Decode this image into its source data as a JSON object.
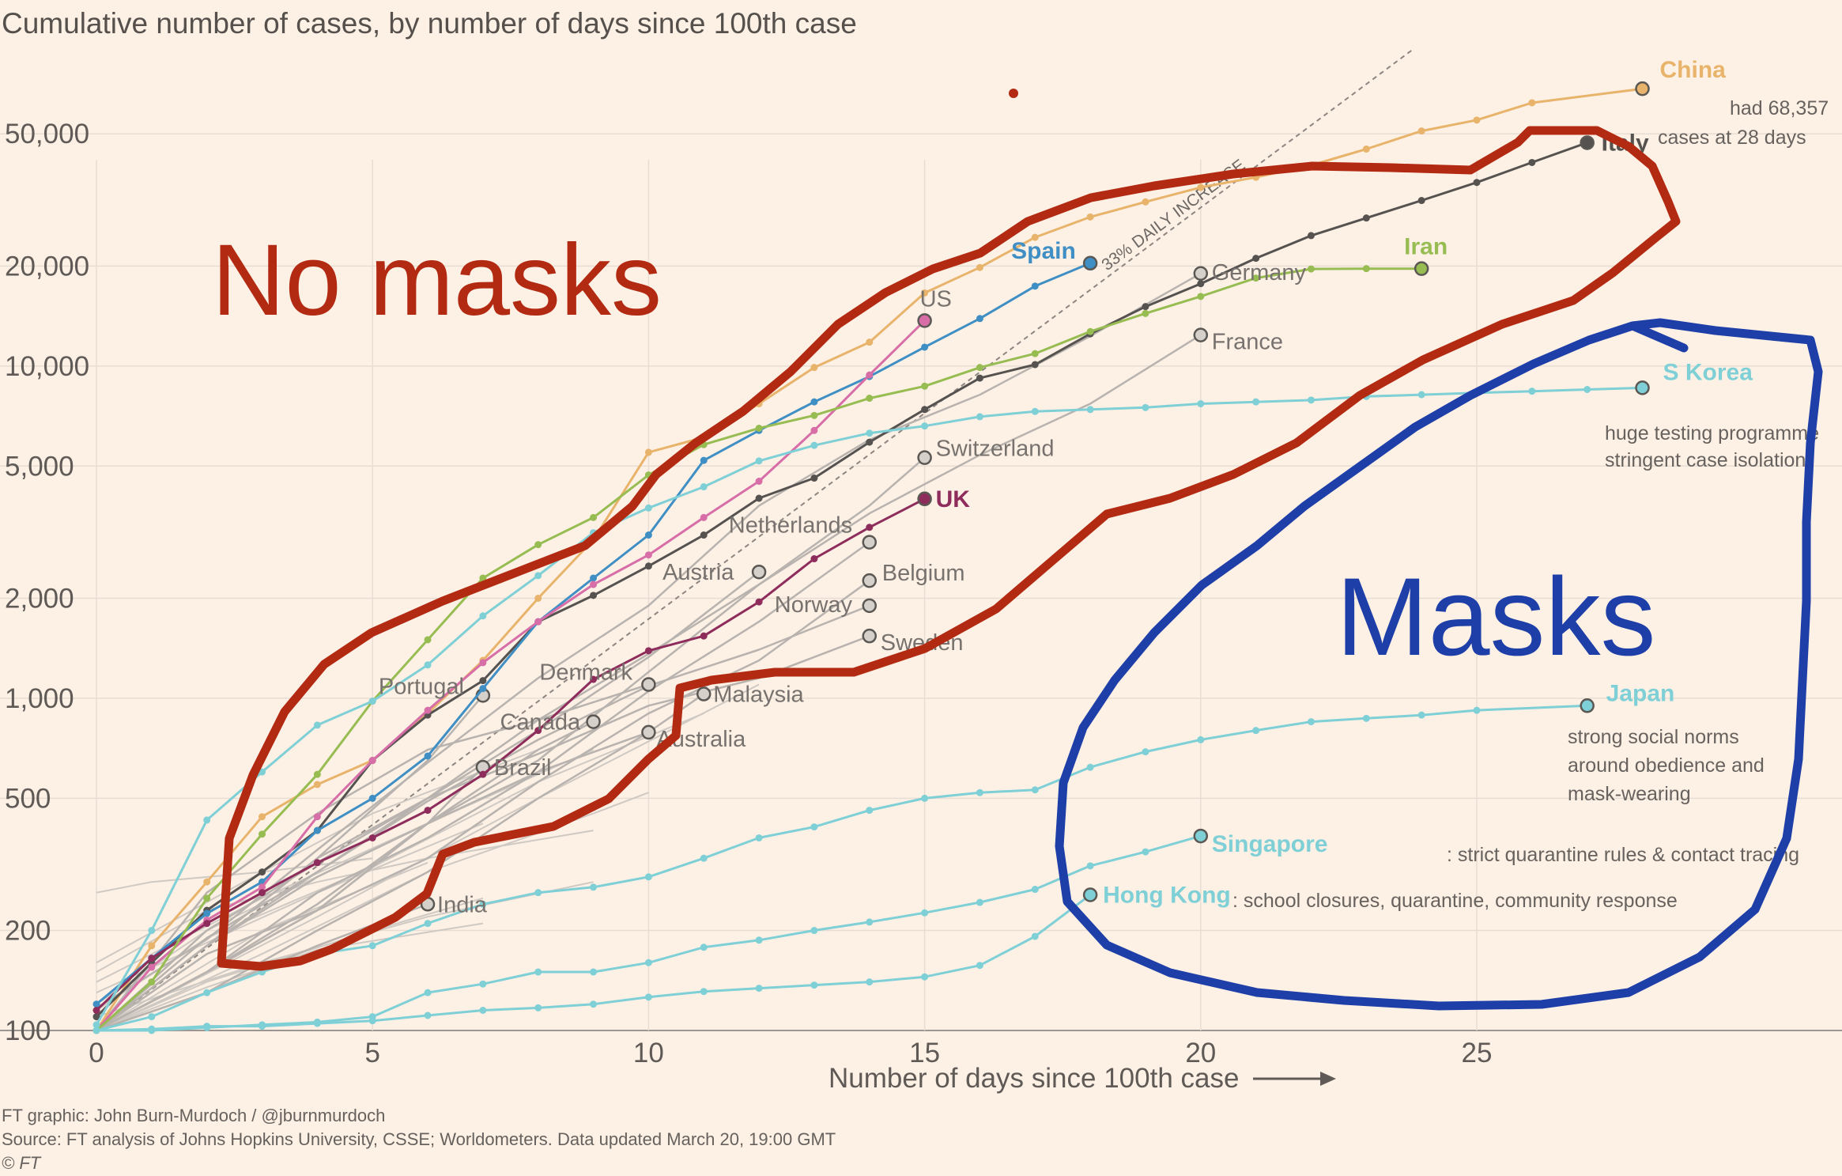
{
  "title": "Cumulative number of cases, by number of days since 100th case",
  "xlabel": "Number of days since 100th case",
  "trend_label": "33% DAILY INCREASE",
  "footer": {
    "credit": "FT graphic: John Burn-Murdoch / @jburnmurdoch",
    "source": "Source: FT analysis of Johns Hopkins University, CSSE; Worldometers. Data updated March 20, 19:00 GMT",
    "copyright": "© FT"
  },
  "annotations": {
    "no_masks": "No masks",
    "masks": "Masks",
    "china_note": [
      "had 68,357",
      "cases at 28 days"
    ],
    "korea_note": [
      "huge testing programme",
      "stringent case isolation"
    ],
    "japan_note": [
      "strong social norms",
      "around obedience and",
      "mask-wearing"
    ],
    "singapore_note": ": strict quarantine rules & contact tracing",
    "hongkong_note": ": school closures, quarantine, community response"
  },
  "colors": {
    "background": "#fdf1e6",
    "grey": "#b8b3ae",
    "china": "#e8b36a",
    "italy": "#555250",
    "spain": "#3f8fc4",
    "us": "#d86ea8",
    "uk": "#8e2d5c",
    "iran": "#97bc51",
    "asia": "#7fd0d6",
    "red_marker": "#b32a12",
    "blue_marker": "#1e3ea8"
  },
  "chart_data": {
    "type": "line",
    "x_scale": "linear",
    "y_scale": "log",
    "xlim": [
      0,
      31
    ],
    "ylim": [
      100,
      90000
    ],
    "x_ticks": [
      0,
      5,
      10,
      15,
      20,
      25
    ],
    "y_ticks": [
      100,
      200,
      500,
      1000,
      2000,
      5000,
      10000,
      20000,
      50000
    ],
    "y_tick_labels": [
      "100",
      "200",
      "500",
      "1,000",
      "2,000",
      "5,000",
      "10,000",
      "20,000",
      "50,000"
    ],
    "grid": true,
    "series": [
      {
        "name": "China",
        "color": "china",
        "x": [
          0,
          1,
          2,
          3,
          4,
          5,
          6,
          7,
          8,
          9,
          10,
          11,
          12,
          13,
          14,
          15,
          16,
          17,
          18,
          19,
          20,
          21,
          22,
          23,
          24,
          25,
          26,
          28
        ],
        "y": [
          100,
          180,
          280,
          440,
          550,
          650,
          900,
          1300,
          2000,
          3000,
          5500,
          6100,
          7700,
          9900,
          11800,
          16600,
          19800,
          24400,
          28100,
          31200,
          34500,
          37000,
          40200,
          45000,
          51000,
          55000,
          62000,
          68357
        ]
      },
      {
        "name": "Italy",
        "color": "italy",
        "x": [
          0,
          1,
          2,
          3,
          4,
          5,
          6,
          7,
          8,
          9,
          10,
          11,
          12,
          13,
          14,
          15,
          16,
          17,
          18,
          19,
          20,
          21,
          22,
          23,
          24,
          25,
          26,
          27
        ],
        "y": [
          110,
          160,
          230,
          300,
          400,
          650,
          890,
          1130,
          1700,
          2040,
          2500,
          3100,
          4000,
          4600,
          5900,
          7400,
          9200,
          10100,
          12500,
          15100,
          17700,
          21100,
          24700,
          27900,
          31500,
          35700,
          41000,
          47021
        ]
      },
      {
        "name": "Spain",
        "color": "spain",
        "x": [
          0,
          1,
          2,
          3,
          4,
          5,
          6,
          7,
          8,
          9,
          10,
          11,
          12,
          13,
          14,
          15,
          16,
          17,
          18
        ],
        "y": [
          120,
          165,
          225,
          280,
          400,
          500,
          670,
          1070,
          1700,
          2300,
          3100,
          5200,
          6400,
          7800,
          9300,
          11400,
          13900,
          17400,
          20400
        ]
      },
      {
        "name": "US",
        "color": "us",
        "x": [
          0,
          1,
          2,
          3,
          4,
          5,
          6,
          7,
          8,
          9,
          10,
          11,
          12,
          13,
          14,
          15
        ],
        "y": [
          100,
          155,
          215,
          270,
          440,
          650,
          920,
          1280,
          1700,
          2200,
          2700,
          3500,
          4500,
          6400,
          9400,
          13700
        ]
      },
      {
        "name": "UK",
        "color": "uk",
        "x": [
          0,
          1,
          2,
          3,
          4,
          5,
          6,
          7,
          8,
          9,
          10,
          11,
          12,
          13,
          14,
          15
        ],
        "y": [
          115,
          165,
          210,
          260,
          320,
          380,
          460,
          590,
          800,
          1140,
          1390,
          1540,
          1950,
          2630,
          3270,
          3983
        ]
      },
      {
        "name": "Iran",
        "color": "iran",
        "x": [
          0,
          1,
          2,
          3,
          4,
          5,
          6,
          7,
          8,
          9,
          10,
          11,
          12,
          13,
          14,
          15,
          16,
          17,
          18,
          19,
          20,
          21,
          22,
          23,
          24
        ],
        "y": [
          100,
          140,
          250,
          390,
          590,
          980,
          1500,
          2300,
          2900,
          3500,
          4700,
          5800,
          6500,
          7100,
          8000,
          8700,
          9900,
          10900,
          12700,
          14400,
          16200,
          18400,
          19600,
          19644,
          19644
        ]
      },
      {
        "name": "S Korea",
        "color": "asia",
        "x": [
          0,
          1,
          2,
          3,
          4,
          5,
          6,
          7,
          8,
          9,
          10,
          11,
          12,
          13,
          14,
          15,
          16,
          17,
          18,
          19,
          20,
          21,
          22,
          23,
          24,
          25,
          26,
          27,
          28
        ],
        "y": [
          104,
          200,
          430,
          600,
          830,
          980,
          1260,
          1770,
          2340,
          3150,
          3740,
          4330,
          5180,
          5770,
          6280,
          6600,
          7040,
          7300,
          7400,
          7500,
          7700,
          7800,
          7900,
          8100,
          8200,
          8300,
          8400,
          8500,
          8600
        ]
      },
      {
        "name": "Japan",
        "color": "asia",
        "x": [
          0,
          1,
          2,
          3,
          4,
          5,
          6,
          7,
          8,
          9,
          10,
          11,
          12,
          13,
          14,
          15,
          16,
          17,
          18,
          19,
          20,
          21,
          22,
          23,
          24,
          25,
          27
        ],
        "y": [
          100,
          110,
          130,
          150,
          170,
          180,
          210,
          240,
          260,
          270,
          290,
          330,
          380,
          410,
          460,
          500,
          520,
          530,
          620,
          690,
          750,
          800,
          850,
          870,
          890,
          920,
          950
        ]
      },
      {
        "name": "Singapore",
        "color": "asia",
        "x": [
          0,
          1,
          2,
          3,
          4,
          5,
          6,
          7,
          8,
          9,
          10,
          11,
          12,
          13,
          14,
          15,
          16,
          17,
          18,
          19,
          20
        ],
        "y": [
          100,
          100,
          102,
          104,
          106,
          110,
          130,
          138,
          150,
          150,
          160,
          178,
          187,
          200,
          212,
          226,
          243,
          266,
          313,
          345,
          385
        ]
      },
      {
        "name": "Hong Kong",
        "color": "asia",
        "x": [
          0,
          1,
          2,
          3,
          4,
          5,
          6,
          7,
          8,
          9,
          10,
          11,
          12,
          13,
          14,
          15,
          16,
          17,
          18
        ],
        "y": [
          100,
          101,
          103,
          103,
          105,
          107,
          111,
          115,
          117,
          120,
          126,
          131,
          134,
          137,
          140,
          145,
          157,
          192,
          256
        ]
      },
      {
        "name": "Germany",
        "color": "grey",
        "x": [
          0,
          2,
          4,
          6,
          8,
          10,
          12,
          14,
          16,
          18,
          19,
          20
        ],
        "y": [
          117,
          188,
          350,
          640,
          1150,
          1900,
          3800,
          6000,
          8200,
          12300,
          15300,
          19000
        ]
      },
      {
        "name": "France",
        "color": "grey",
        "x": [
          0,
          2,
          4,
          6,
          8,
          10,
          12,
          14,
          16,
          18,
          20
        ],
        "y": [
          100,
          180,
          290,
          420,
          650,
          1200,
          2200,
          3600,
          5400,
          7700,
          12400
        ]
      },
      {
        "name": "Switzerland",
        "color": "grey",
        "x": [
          0,
          2,
          4,
          6,
          8,
          10,
          12,
          14,
          15
        ],
        "y": [
          100,
          180,
          330,
          500,
          860,
          1360,
          2200,
          3800,
          5300
        ]
      },
      {
        "name": "Netherlands",
        "color": "grey",
        "x": [
          0,
          2,
          4,
          6,
          8,
          10,
          12,
          14
        ],
        "y": [
          100,
          150,
          260,
          380,
          600,
          1050,
          1700,
          2950
        ]
      },
      {
        "name": "Austria",
        "color": "grey",
        "x": [
          0,
          2,
          4,
          6,
          8,
          10,
          12
        ],
        "y": [
          100,
          180,
          300,
          500,
          800,
          1330,
          2400
        ]
      },
      {
        "name": "Belgium",
        "color": "grey",
        "x": [
          0,
          2,
          4,
          6,
          8,
          10,
          12,
          14
        ],
        "y": [
          100,
          170,
          230,
          330,
          560,
          900,
          1300,
          2260
        ]
      },
      {
        "name": "Norway",
        "color": "grey",
        "x": [
          0,
          2,
          4,
          6,
          8,
          10,
          12,
          14
        ],
        "y": [
          100,
          190,
          300,
          490,
          750,
          1090,
          1400,
          1900
        ]
      },
      {
        "name": "Sweden",
        "color": "grey",
        "x": [
          0,
          2,
          4,
          6,
          8,
          10,
          12,
          14
        ],
        "y": [
          100,
          200,
          320,
          500,
          680,
          950,
          1150,
          1540
        ]
      },
      {
        "name": "Denmark",
        "color": "grey",
        "x": [
          0,
          2,
          4,
          6,
          8,
          10
        ],
        "y": [
          100,
          260,
          450,
          700,
          860,
          1100
        ]
      },
      {
        "name": "Portugal",
        "color": "grey",
        "x": [
          0,
          2,
          4,
          6,
          7
        ],
        "y": [
          100,
          180,
          330,
          650,
          1020
        ]
      },
      {
        "name": "Canada",
        "color": "grey",
        "x": [
          0,
          2,
          4,
          6,
          8,
          9
        ],
        "y": [
          100,
          150,
          230,
          420,
          700,
          850
        ]
      },
      {
        "name": "Brazil",
        "color": "grey",
        "x": [
          0,
          2,
          4,
          6,
          7
        ],
        "y": [
          100,
          150,
          230,
          420,
          620
        ]
      },
      {
        "name": "Malaysia",
        "color": "grey",
        "x": [
          0,
          2,
          4,
          6,
          8,
          10,
          11
        ],
        "y": [
          100,
          150,
          240,
          420,
          600,
          790,
          1030
        ]
      },
      {
        "name": "Australia",
        "color": "grey",
        "x": [
          0,
          2,
          4,
          6,
          8,
          10
        ],
        "y": [
          100,
          130,
          200,
          300,
          500,
          790
        ]
      },
      {
        "name": "India",
        "color": "grey",
        "x": [
          0,
          2,
          4,
          6
        ],
        "y": [
          100,
          130,
          180,
          240
        ]
      }
    ]
  },
  "background_lines": [
    {
      "x": [
        0,
        3,
        6,
        9
      ],
      "y": [
        140,
        250,
        420,
        700
      ]
    },
    {
      "x": [
        0,
        2,
        5,
        8
      ],
      "y": [
        120,
        200,
        350,
        600
      ]
    },
    {
      "x": [
        0,
        3,
        6,
        9,
        10
      ],
      "y": [
        100,
        170,
        300,
        450,
        520
      ]
    },
    {
      "x": [
        0,
        4,
        7
      ],
      "y": [
        130,
        260,
        420
      ]
    },
    {
      "x": [
        0,
        2,
        4,
        6,
        9
      ],
      "y": [
        150,
        230,
        280,
        330,
        400
      ]
    },
    {
      "x": [
        0,
        3,
        6,
        9
      ],
      "y": [
        110,
        160,
        220,
        280
      ]
    },
    {
      "x": [
        0,
        2,
        5,
        7
      ],
      "y": [
        100,
        140,
        200,
        250
      ]
    },
    {
      "x": [
        0,
        3,
        5,
        8
      ],
      "y": [
        160,
        300,
        450,
        700
      ]
    },
    {
      "x": [
        0,
        4,
        8,
        12
      ],
      "y": [
        100,
        220,
        500,
        1100
      ]
    },
    {
      "x": [
        0,
        2,
        4,
        7
      ],
      "y": [
        100,
        135,
        175,
        210
      ]
    },
    {
      "x": [
        0,
        1,
        3,
        5
      ],
      "y": [
        260,
        280,
        300,
        330
      ]
    },
    {
      "x": [
        0,
        3,
        6
      ],
      "y": [
        100,
        200,
        320
      ]
    },
    {
      "x": [
        0,
        2,
        5,
        8,
        11
      ],
      "y": [
        115,
        190,
        310,
        560,
        900
      ]
    }
  ],
  "labels": [
    {
      "key": "China",
      "text": "China",
      "bold": true,
      "color": "china"
    },
    {
      "key": "Italy",
      "text": "Italy",
      "bold": true,
      "color": "italy"
    },
    {
      "key": "Spain",
      "text": "Spain",
      "bold": true,
      "color": "spain"
    },
    {
      "key": "US",
      "text": "US",
      "bold": false,
      "color": "us"
    },
    {
      "key": "UK",
      "text": "UK",
      "bold": true,
      "color": "uk"
    },
    {
      "key": "Iran",
      "text": "Iran",
      "bold": true,
      "color": "iran"
    },
    {
      "key": "S Korea",
      "text": "S Korea",
      "bold": true,
      "color": "asia"
    },
    {
      "key": "Japan",
      "text": "Japan",
      "bold": true,
      "color": "asia"
    },
    {
      "key": "Singapore",
      "text": "Singapore",
      "bold": true,
      "color": "asia"
    },
    {
      "key": "Hong Kong",
      "text": "Hong Kong",
      "bold": true,
      "color": "asia"
    },
    {
      "key": "Germany",
      "text": "Germany",
      "bold": false,
      "color": "grey"
    },
    {
      "key": "France",
      "text": "France",
      "bold": false,
      "color": "grey"
    },
    {
      "key": "Switzerland",
      "text": "Switzerland",
      "bold": false,
      "color": "grey"
    },
    {
      "key": "Netherlands",
      "text": "Netherlands",
      "bold": false,
      "color": "grey"
    },
    {
      "key": "Austria",
      "text": "Austria",
      "bold": false,
      "color": "grey"
    },
    {
      "key": "Belgium",
      "text": "Belgium",
      "bold": false,
      "color": "grey"
    },
    {
      "key": "Norway",
      "text": "Norway",
      "bold": false,
      "color": "grey"
    },
    {
      "key": "Sweden",
      "text": "Sweden",
      "bold": false,
      "color": "grey"
    },
    {
      "key": "Denmark",
      "text": "Denmark",
      "bold": false,
      "color": "grey"
    },
    {
      "key": "Portugal",
      "text": "Portugal",
      "bold": false,
      "color": "grey"
    },
    {
      "key": "Canada",
      "text": "Canada",
      "bold": false,
      "color": "grey"
    },
    {
      "key": "Brazil",
      "text": "Brazil",
      "bold": false,
      "color": "grey"
    },
    {
      "key": "Malaysia",
      "text": "Malaysia",
      "bold": false,
      "color": "grey"
    },
    {
      "key": "Australia",
      "text": "Australia",
      "bold": false,
      "color": "grey"
    },
    {
      "key": "India",
      "text": "India",
      "bold": false,
      "color": "grey"
    }
  ]
}
